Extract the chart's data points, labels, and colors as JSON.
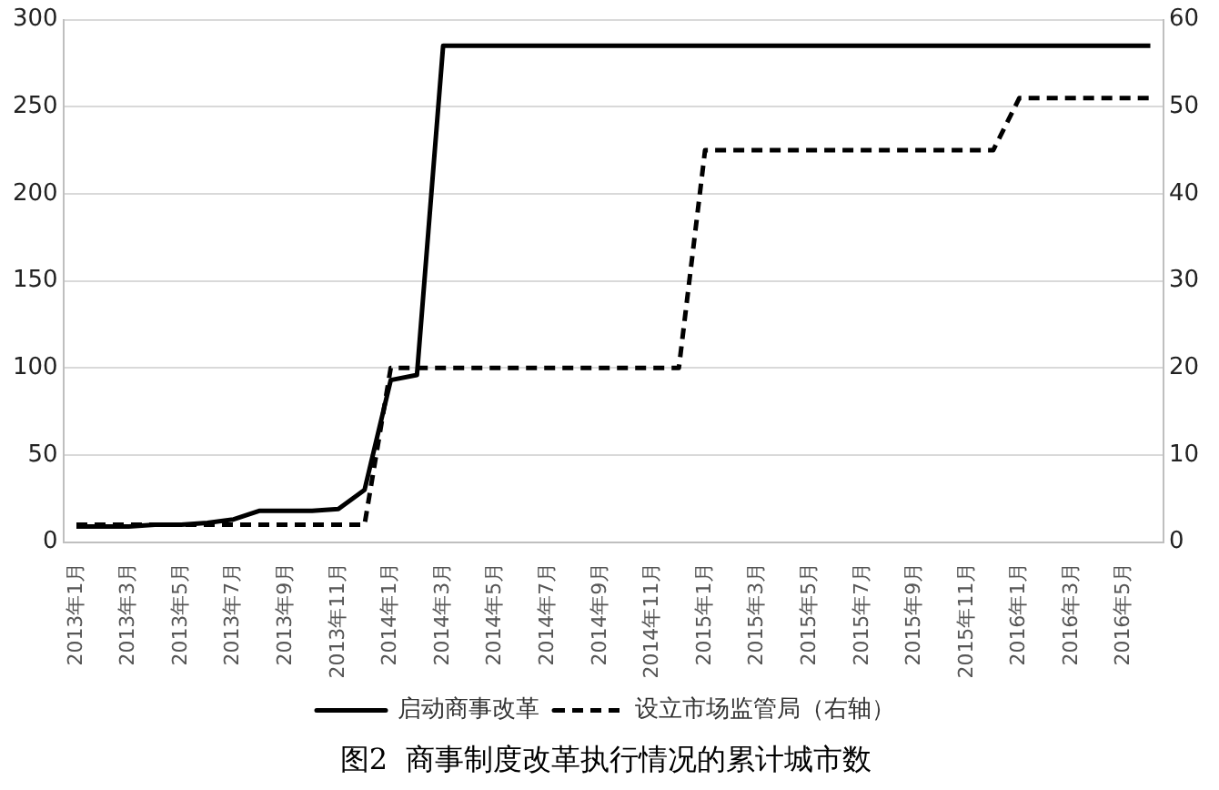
{
  "chart_data": {
    "type": "line",
    "title": "图2  商事制度改革执行情况的累计城市数",
    "categories": [
      "2013年1月",
      null,
      "2013年3月",
      null,
      "2013年5月",
      null,
      "2013年7月",
      null,
      "2013年9月",
      null,
      "2013年11月",
      null,
      "2014年1月",
      null,
      "2014年3月",
      null,
      "2014年5月",
      null,
      "2014年7月",
      null,
      "2014年9月",
      null,
      "2014年11月",
      null,
      "2015年1月",
      null,
      "2015年3月",
      null,
      "2015年5月",
      null,
      "2015年7月",
      null,
      "2015年9月",
      null,
      "2015年11月",
      null,
      "2016年1月",
      null,
      "2016年3月",
      null,
      "2016年5月",
      null
    ],
    "series": [
      {
        "name": "启动商事改革",
        "color": "#000000",
        "line_style": "solid",
        "values": [
          9,
          9,
          9,
          10,
          10,
          11,
          13,
          18,
          18,
          18,
          19,
          30,
          93,
          96,
          285,
          285,
          285,
          285,
          285,
          285,
          285,
          285,
          285,
          285,
          285,
          285,
          285,
          285,
          285,
          285,
          285,
          285,
          285,
          285,
          285,
          285,
          285,
          285,
          285,
          285,
          285,
          285
        ]
      },
      {
        "name": "设立市场监管局（右轴）",
        "color": "#000000",
        "line_style": "dashed",
        "axis": "y2",
        "values": [
          2,
          2,
          2,
          2,
          2,
          2,
          2,
          2,
          2,
          2,
          2,
          2,
          20,
          20,
          20,
          20,
          20,
          20,
          20,
          20,
          20,
          20,
          20,
          20,
          45,
          45,
          45,
          45,
          45,
          45,
          45,
          45,
          45,
          45,
          45,
          45,
          51,
          51,
          51,
          51,
          51,
          51
        ]
      }
    ],
    "ylim": [
      0,
      300
    ],
    "yticks": [
      0,
      50,
      100,
      150,
      200,
      250,
      300
    ],
    "y2lim": [
      0,
      60
    ],
    "y2ticks": [
      0,
      10,
      20,
      30,
      40,
      50,
      60
    ],
    "grid": "y",
    "legend": "bottom",
    "marker": "none"
  }
}
